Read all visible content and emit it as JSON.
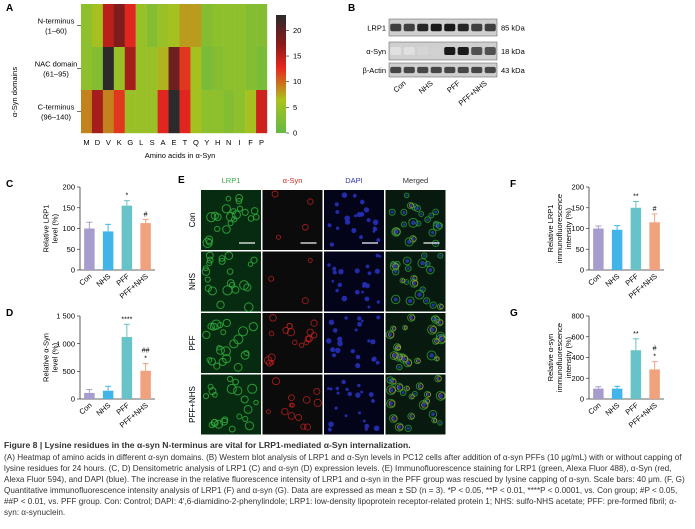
{
  "panels": {
    "A": "A",
    "B": "B",
    "C": "C",
    "D": "D",
    "E": "E",
    "F": "F",
    "G": "G"
  },
  "colors": {
    "purple": "#a79ccd",
    "cyan": "#41b5e9",
    "teal": "#67c3c8",
    "orange": "#f0a27e"
  },
  "heatmap": {
    "y_axis_title": "α-Syn domains",
    "x_axis_title": "Amino acids in α-Syn",
    "rows": [
      {
        "name": "N-terminus",
        "range": "(1–60)"
      },
      {
        "name": "NAC domain",
        "range": "(61–95)"
      },
      {
        "name": "C-terminus",
        "range": "(96–140)"
      }
    ],
    "columns": [
      "M",
      "D",
      "V",
      "K",
      "G",
      "L",
      "S",
      "A",
      "E",
      "T",
      "Q",
      "Y",
      "H",
      "N",
      "I",
      "F",
      "P"
    ],
    "colorbar_ticks": [
      "20",
      "15",
      "10",
      "5",
      "0"
    ],
    "colorbar_range": [
      0,
      23
    ],
    "colorscale": [
      "#2b2b2b",
      "#8c1a1a",
      "#e8271f",
      "#a9c21d",
      "#63b944"
    ],
    "values": [
      [
        4,
        6,
        15,
        18,
        13,
        5,
        3,
        5,
        6,
        8,
        8,
        3,
        4,
        4,
        4,
        3,
        3
      ],
      [
        4,
        3,
        23,
        5,
        16,
        5,
        5,
        7,
        19,
        12,
        6,
        2,
        3,
        4,
        4,
        3,
        2
      ],
      [
        9,
        16,
        9,
        12,
        5,
        5,
        5,
        13,
        23,
        13,
        6,
        4,
        4,
        3,
        4,
        6,
        14
      ]
    ]
  },
  "blot": {
    "rows": [
      {
        "label": "LRP1",
        "size": "85 kDa"
      },
      {
        "label": "α-Syn",
        "size": "18 kDa"
      },
      {
        "label": "β-Actin",
        "size": "43 kDa"
      }
    ],
    "lanes": [
      "Con",
      "NHS",
      "PFF",
      "PFF+NHS"
    ],
    "intensities": [
      [
        0.78,
        0.78,
        0.9,
        0.95,
        0.95,
        0.9,
        0.78,
        0.78
      ],
      [
        0.05,
        0.05,
        0.1,
        0.12,
        0.95,
        0.95,
        0.7,
        0.7
      ],
      [
        0.75,
        0.75,
        0.75,
        0.75,
        0.75,
        0.75,
        0.75,
        0.75
      ]
    ]
  },
  "groups": [
    "Con",
    "NHS",
    "PFF",
    "PFF+NHS"
  ],
  "chart_data": [
    {
      "panel": "C",
      "type": "bar",
      "categories": [
        "Con",
        "NHS",
        "PFF",
        "PFF+NHS"
      ],
      "values": [
        100,
        93,
        155,
        113
      ],
      "errors": [
        15,
        17,
        12,
        9
      ],
      "ylabel": "Relative LRP1 level (%)",
      "ylim": [
        0,
        200
      ],
      "yticks": [
        "0",
        "50",
        "100",
        "150",
        "200"
      ],
      "annotations": [
        "",
        "",
        "*",
        "#"
      ]
    },
    {
      "panel": "D",
      "type": "bar",
      "categories": [
        "Con",
        "NHS",
        "PFF",
        "PFF+NHS"
      ],
      "values": [
        110,
        150,
        1120,
        510
      ],
      "errors": [
        60,
        80,
        230,
        130
      ],
      "ylabel": "Relative α-Syn level (%)",
      "ylim": [
        0,
        1500
      ],
      "yticks": [
        "0",
        "500",
        "1 000",
        "1 500"
      ],
      "annotations": [
        "",
        "",
        "****",
        "## *"
      ]
    },
    {
      "panel": "F",
      "type": "bar",
      "categories": [
        "Con",
        "NHS",
        "PFF",
        "PFF+NHS"
      ],
      "values": [
        100,
        97,
        150,
        115
      ],
      "errors": [
        6,
        10,
        15,
        20
      ],
      "ylabel": "Relative LRP1 immunofluorescence intensity (%)",
      "ylim": [
        0,
        200
      ],
      "yticks": [
        "0",
        "50",
        "100",
        "150",
        "200"
      ],
      "annotations": [
        "",
        "",
        "**",
        "#"
      ]
    },
    {
      "panel": "G",
      "type": "bar",
      "categories": [
        "Con",
        "NHS",
        "PFF",
        "PFF+NHS"
      ],
      "values": [
        100,
        100,
        470,
        285
      ],
      "errors": [
        18,
        22,
        110,
        75
      ],
      "ylabel": "Relative α-syn immunofluorescence intensity (%)",
      "ylim": [
        0,
        800
      ],
      "yticks": [
        "0",
        "200",
        "400",
        "600",
        "800"
      ],
      "annotations": [
        "",
        "",
        "**",
        "# *"
      ]
    }
  ],
  "micro": {
    "columns": [
      {
        "label": "LRP1",
        "color": "#3aa645"
      },
      {
        "label": "α-Syn",
        "color": "#d12a2a"
      },
      {
        "label": "DAPI",
        "color": "#2b3aa8"
      },
      {
        "label": "Merged",
        "color": "#333333"
      }
    ],
    "rows": [
      "Con",
      "NHS",
      "PFF",
      "PFF+NHS"
    ]
  },
  "caption": {
    "title": "Figure 8 | Lysine residues in the α-syn N-terminus are vital for LRP1-mediated α-Syn internalization.",
    "body": "(A) Heatmap of amino acids in different α-syn domains. (B) Western blot analysis of LRP1 and α-Syn levels in PC12 cells after addition of α-syn PFFs (10 μg/mL) with or without capping of lysine residues for 24 hours. (C, D) Densitometric analysis of LRP1 (C) and α-syn (D) expression levels. (E) Immunofluorescence staining for LRP1 (green, Alexa Fluor 488), α-Syn (red, Alexa Fluor 594), and DAPI (blue). The increase in the relative fluorescence intensity of LRP1 and α-syn in the PFF group was rescued by lysine capping of α-syn. Scale bars: 40 μm. (F, G) Quantitative immunofluorescence intensity analysis of LRP1 (F) and α-syn (G). Data are expressed as mean ± SD (n = 3). *P < 0.05, **P < 0.01, ****P < 0.0001, vs. Con group; #P < 0.05, ##P < 0.01, vs. PFF group. Con: Control; DAPI: 4′,6-diamidino-2-phenylindole; LRP1: low-density lipoprotein receptor-related protein 1; NHS: sulfo-NHS acetate; PFF: pre-formed fibril; α-syn: α-synuclein."
  }
}
